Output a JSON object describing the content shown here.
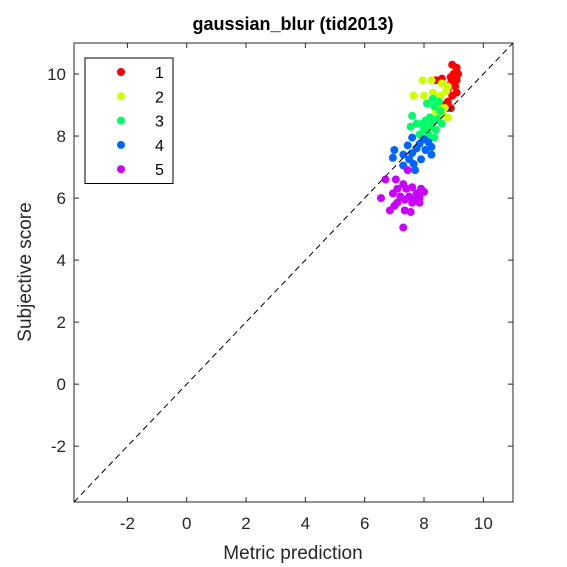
{
  "chart_data": {
    "type": "scatter",
    "title": "gaussian_blur (tid2013)",
    "xlabel": "Metric prediction",
    "ylabel": "Subjective score",
    "xlim": [
      -3.8,
      11.0
    ],
    "ylim": [
      -3.8,
      11.0
    ],
    "xticks": [
      -2,
      0,
      2,
      4,
      6,
      8,
      10
    ],
    "yticks": [
      -2,
      0,
      2,
      4,
      6,
      8,
      10
    ],
    "reference_line": "y = x",
    "legend_position": "top-left",
    "series": [
      {
        "name": "1",
        "color": "#ff0000",
        "points": [
          [
            8.95,
            10.3
          ],
          [
            9.1,
            10.2
          ],
          [
            9.0,
            10.0
          ],
          [
            9.15,
            10.0
          ],
          [
            8.9,
            9.9
          ],
          [
            9.1,
            9.8
          ],
          [
            8.6,
            9.85
          ],
          [
            8.4,
            9.8
          ],
          [
            8.9,
            9.7
          ],
          [
            9.05,
            9.6
          ],
          [
            8.8,
            9.5
          ],
          [
            9.1,
            9.4
          ],
          [
            8.95,
            9.3
          ],
          [
            8.8,
            9.1
          ],
          [
            8.9,
            8.9
          ],
          [
            8.7,
            9.0
          ]
        ]
      },
      {
        "name": "2",
        "color": "#ccff00",
        "points": [
          [
            7.95,
            9.8
          ],
          [
            8.25,
            9.8
          ],
          [
            8.6,
            9.7
          ],
          [
            8.8,
            9.6
          ],
          [
            8.3,
            9.4
          ],
          [
            8.55,
            9.3
          ],
          [
            8.75,
            9.45
          ],
          [
            7.65,
            9.3
          ],
          [
            8.0,
            9.3
          ],
          [
            8.5,
            9.0
          ],
          [
            8.7,
            8.9
          ],
          [
            8.4,
            8.8
          ],
          [
            8.6,
            8.7
          ],
          [
            8.8,
            8.6
          ]
        ]
      },
      {
        "name": "3",
        "color": "#00ff66",
        "points": [
          [
            8.3,
            9.2
          ],
          [
            8.5,
            9.1
          ],
          [
            8.1,
            9.05
          ],
          [
            8.35,
            8.95
          ],
          [
            8.55,
            8.8
          ],
          [
            7.6,
            8.65
          ],
          [
            8.2,
            8.6
          ],
          [
            8.45,
            8.55
          ],
          [
            8.05,
            8.5
          ],
          [
            8.3,
            8.5
          ],
          [
            7.75,
            8.4
          ],
          [
            7.95,
            8.4
          ],
          [
            8.6,
            8.4
          ],
          [
            7.55,
            8.3
          ],
          [
            8.2,
            8.3
          ],
          [
            8.0,
            8.2
          ],
          [
            8.4,
            8.2
          ],
          [
            7.85,
            8.05
          ],
          [
            8.15,
            8.05
          ],
          [
            8.35,
            7.95
          ],
          [
            7.95,
            7.9
          ]
        ]
      },
      {
        "name": "4",
        "color": "#0066ff",
        "points": [
          [
            7.6,
            7.95
          ],
          [
            8.0,
            7.9
          ],
          [
            8.15,
            7.8
          ],
          [
            7.85,
            7.75
          ],
          [
            7.45,
            7.7
          ],
          [
            8.25,
            7.65
          ],
          [
            7.75,
            7.6
          ],
          [
            8.05,
            7.55
          ],
          [
            7.0,
            7.55
          ],
          [
            7.6,
            7.45
          ],
          [
            7.3,
            7.4
          ],
          [
            8.25,
            7.4
          ],
          [
            6.95,
            7.3
          ],
          [
            7.5,
            7.25
          ],
          [
            7.9,
            7.25
          ],
          [
            7.65,
            7.1
          ],
          [
            7.3,
            7.05
          ],
          [
            7.7,
            6.9
          ]
        ]
      },
      {
        "name": "5",
        "color": "#cc00ff",
        "points": [
          [
            6.7,
            6.6
          ],
          [
            7.05,
            6.6
          ],
          [
            7.45,
            6.9
          ],
          [
            7.3,
            6.45
          ],
          [
            7.6,
            6.35
          ],
          [
            7.9,
            6.3
          ],
          [
            7.4,
            6.3
          ],
          [
            7.1,
            6.3
          ],
          [
            7.75,
            6.15
          ],
          [
            8.0,
            6.2
          ],
          [
            6.95,
            6.15
          ],
          [
            7.2,
            6.05
          ],
          [
            7.5,
            6.05
          ],
          [
            7.85,
            6.0
          ],
          [
            6.55,
            6.0
          ],
          [
            7.35,
            5.95
          ],
          [
            7.7,
            5.95
          ],
          [
            7.85,
            5.85
          ],
          [
            7.1,
            5.85
          ],
          [
            7.6,
            5.85
          ],
          [
            7.0,
            5.75
          ],
          [
            7.35,
            5.6
          ],
          [
            6.85,
            5.6
          ],
          [
            7.55,
            5.55
          ],
          [
            7.3,
            5.05
          ]
        ]
      }
    ]
  }
}
